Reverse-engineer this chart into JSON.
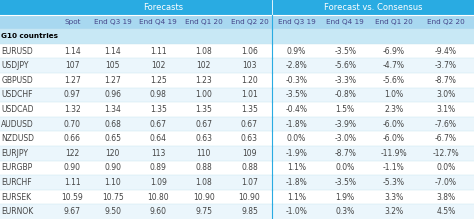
{
  "title_forecasts": "Forecasts",
  "title_consensus": "Forecast vs. Consensus",
  "col_headers": [
    "",
    "Spot",
    "End Q3 19",
    "End Q4 19",
    "End Q1 20",
    "End Q2 20",
    "End Q3 19",
    "End Q4 19",
    "End Q1 20",
    "End Q2 20"
  ],
  "section_header": "G10 countries",
  "rows": [
    [
      "EURUSD",
      "1.14",
      "1.14",
      "1.11",
      "1.08",
      "1.06",
      "0.9%",
      "-3.5%",
      "-6.9%",
      "-9.4%"
    ],
    [
      "USDJPY",
      "107",
      "105",
      "102",
      "102",
      "103",
      "-2.8%",
      "-5.6%",
      "-4.7%",
      "-3.7%"
    ],
    [
      "GBPUSD",
      "1.27",
      "1.27",
      "1.25",
      "1.23",
      "1.20",
      "-0.3%",
      "-3.3%",
      "-5.6%",
      "-8.7%"
    ],
    [
      "USDCHF",
      "0.97",
      "0.96",
      "0.98",
      "1.00",
      "1.01",
      "-3.5%",
      "-0.8%",
      "1.0%",
      "3.0%"
    ],
    [
      "USDCAD",
      "1.32",
      "1.34",
      "1.35",
      "1.35",
      "1.35",
      "-0.4%",
      "1.5%",
      "2.3%",
      "3.1%"
    ],
    [
      "AUDUSD",
      "0.70",
      "0.68",
      "0.67",
      "0.67",
      "0.67",
      "-1.8%",
      "-3.9%",
      "-6.0%",
      "-7.6%"
    ],
    [
      "NZDUSD",
      "0.66",
      "0.65",
      "0.64",
      "0.63",
      "0.63",
      "0.0%",
      "-3.0%",
      "-6.0%",
      "-6.7%"
    ],
    [
      "EURJPY",
      "122",
      "120",
      "113",
      "110",
      "109",
      "-1.9%",
      "-8.7%",
      "-11.9%",
      "-12.7%"
    ],
    [
      "EURGBP",
      "0.90",
      "0.90",
      "0.89",
      "0.88",
      "0.88",
      "1.1%",
      "0.0%",
      "-1.1%",
      "0.0%"
    ],
    [
      "EURCHF",
      "1.11",
      "1.10",
      "1.09",
      "1.08",
      "1.07",
      "-1.8%",
      "-3.5%",
      "-5.3%",
      "-7.0%"
    ],
    [
      "EURSEK",
      "10.59",
      "10.75",
      "10.80",
      "10.90",
      "10.90",
      "1.1%",
      "1.9%",
      "3.3%",
      "3.8%"
    ],
    [
      "EURNOK",
      "9.67",
      "9.50",
      "9.60",
      "9.75",
      "9.85",
      "-1.0%",
      "0.3%",
      "3.2%",
      "4.5%"
    ]
  ],
  "header_bg": "#29ABE2",
  "subheader_bg": "#A8D8F0",
  "section_bg": "#C8E8F5",
  "row_bg_odd": "#FFFFFF",
  "row_bg_even": "#EBF6FC",
  "header_text_color": "#FFFFFF",
  "cell_text_color": "#444444",
  "section_text_color": "#000000",
  "col_header_text_color": "#444488",
  "divider_color": "#29ABE2",
  "font_size": 5.5,
  "header_font_size": 6.0
}
